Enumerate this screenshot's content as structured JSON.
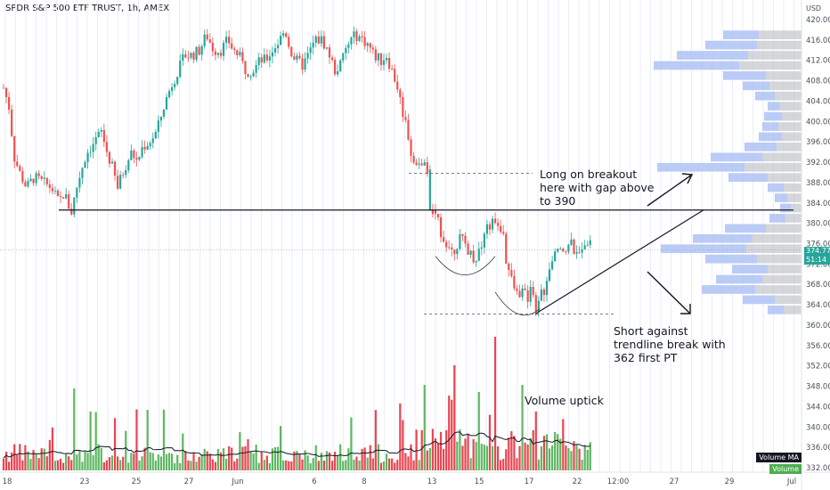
{
  "header": {
    "title": "SPDR S&P 500 ETF TRUST, 1h, AMEX"
  },
  "axis": {
    "currency": "USD"
  },
  "price_tag": {
    "value": "374.77",
    "countdown": "51:14"
  },
  "volume_tags": {
    "ma": "Volume MA",
    "vol": "Volume"
  },
  "annotations": {
    "long_line1": "Long on breakout",
    "long_line2": "here with gap above",
    "long_line3": "to 390",
    "short_line1": "Short against",
    "short_line2": "trendline break with",
    "short_line3": "362 first PT",
    "volume_note": "Volume uptick"
  },
  "colors": {
    "up": "#26a69a",
    "down": "#ef5350",
    "vol_up": "#4caf50",
    "vol_down": "#e5323e",
    "profile": "#b2c5f5",
    "profile_gray": "#c3c5cb"
  },
  "chart_data": {
    "type": "candlestick",
    "title": "SPDR S&P 500 ETF TRUST, 1h, AMEX",
    "y_ticks": [
      420,
      416,
      412,
      408,
      404,
      400,
      396,
      392,
      388,
      384,
      380,
      376,
      372,
      368,
      364,
      360,
      356,
      352,
      348,
      344,
      340,
      336,
      332
    ],
    "x_ticks": [
      "18",
      "23",
      "25",
      "27",
      "Jun",
      "6",
      "8",
      "13",
      "15",
      "17",
      "22",
      "12:00",
      "27",
      "29",
      "Jul"
    ],
    "ylim": [
      331,
      421
    ],
    "last_price": 374.77,
    "key_levels": {
      "breakout": 382.6,
      "gap_fill": 389.8,
      "support_pt": 362.2,
      "current": 374.8
    },
    "path": [
      [
        0,
        409
      ],
      [
        10,
        403
      ],
      [
        16,
        393
      ],
      [
        22,
        390
      ],
      [
        30,
        387
      ],
      [
        38,
        389
      ],
      [
        48,
        388
      ],
      [
        58,
        387
      ],
      [
        66,
        384
      ],
      [
        72,
        386
      ],
      [
        80,
        382
      ],
      [
        86,
        387
      ],
      [
        92,
        391
      ],
      [
        98,
        394
      ],
      [
        106,
        396
      ],
      [
        114,
        398
      ],
      [
        120,
        394
      ],
      [
        126,
        391
      ],
      [
        132,
        387
      ],
      [
        140,
        391
      ],
      [
        148,
        394
      ],
      [
        154,
        392
      ],
      [
        160,
        395
      ],
      [
        168,
        396
      ],
      [
        176,
        398
      ],
      [
        184,
        403
      ],
      [
        192,
        407
      ],
      [
        200,
        410
      ],
      [
        208,
        413
      ],
      [
        216,
        413
      ],
      [
        224,
        414
      ],
      [
        232,
        417
      ],
      [
        240,
        414
      ],
      [
        248,
        414
      ],
      [
        256,
        416
      ],
      [
        262,
        414
      ],
      [
        268,
        413
      ],
      [
        276,
        410
      ],
      [
        284,
        410
      ],
      [
        292,
        412
      ],
      [
        298,
        412
      ],
      [
        306,
        414
      ],
      [
        314,
        416
      ],
      [
        320,
        418
      ],
      [
        326,
        414
      ],
      [
        332,
        412
      ],
      [
        340,
        411
      ],
      [
        346,
        413
      ],
      [
        354,
        416
      ],
      [
        362,
        416
      ],
      [
        370,
        413
      ],
      [
        376,
        410
      ],
      [
        382,
        411
      ],
      [
        388,
        414
      ],
      [
        394,
        416
      ],
      [
        400,
        417
      ],
      [
        408,
        416
      ],
      [
        414,
        415
      ],
      [
        420,
        413
      ],
      [
        428,
        412
      ],
      [
        434,
        413
      ],
      [
        440,
        410
      ],
      [
        446,
        407
      ],
      [
        452,
        402
      ],
      [
        458,
        398
      ],
      [
        462,
        393
      ],
      [
        468,
        391
      ],
      [
        474,
        392
      ],
      [
        480,
        390
      ],
      [
        484,
        389.5
      ],
      [
        486,
        382
      ],
      [
        492,
        380
      ],
      [
        498,
        377
      ],
      [
        504,
        376
      ],
      [
        510,
        375
      ],
      [
        516,
        377
      ],
      [
        522,
        376
      ],
      [
        528,
        374
      ],
      [
        534,
        373
      ],
      [
        540,
        376
      ],
      [
        546,
        379
      ],
      [
        552,
        380
      ],
      [
        556,
        381
      ],
      [
        560,
        378
      ],
      [
        564,
        380
      ],
      [
        568,
        373
      ],
      [
        574,
        369
      ],
      [
        580,
        366
      ],
      [
        586,
        367
      ],
      [
        592,
        365
      ],
      [
        598,
        368
      ],
      [
        602,
        363
      ],
      [
        606,
        366
      ],
      [
        612,
        367
      ],
      [
        618,
        371
      ],
      [
        624,
        374
      ],
      [
        630,
        376
      ],
      [
        636,
        375
      ],
      [
        642,
        376
      ],
      [
        648,
        373
      ],
      [
        654,
        376
      ],
      [
        660,
        377
      ],
      [
        664,
        375
      ]
    ],
    "volume_profile": [
      {
        "price": 417,
        "blue": 40,
        "gray": 48
      },
      {
        "price": 415,
        "blue": 58,
        "gray": 50
      },
      {
        "price": 413,
        "blue": 80,
        "gray": 60
      },
      {
        "price": 411,
        "blue": 96,
        "gray": 70
      },
      {
        "price": 409,
        "blue": 48,
        "gray": 40
      },
      {
        "price": 407,
        "blue": 30,
        "gray": 36
      },
      {
        "price": 405,
        "blue": 22,
        "gray": 30
      },
      {
        "price": 403,
        "blue": 14,
        "gray": 24
      },
      {
        "price": 401,
        "blue": 20,
        "gray": 22
      },
      {
        "price": 399,
        "blue": 18,
        "gray": 26
      },
      {
        "price": 397,
        "blue": 26,
        "gray": 22
      },
      {
        "price": 395,
        "blue": 36,
        "gray": 28
      },
      {
        "price": 393,
        "blue": 58,
        "gray": 44
      },
      {
        "price": 391,
        "blue": 98,
        "gray": 64
      },
      {
        "price": 389,
        "blue": 44,
        "gray": 38
      },
      {
        "price": 387,
        "blue": 18,
        "gray": 20
      },
      {
        "price": 385,
        "blue": 14,
        "gray": 16
      },
      {
        "price": 383,
        "blue": 12,
        "gray": 12
      },
      {
        "price": 381,
        "blue": 18,
        "gray": 18
      },
      {
        "price": 379,
        "blue": 46,
        "gray": 40
      },
      {
        "price": 377,
        "blue": 66,
        "gray": 56
      },
      {
        "price": 375,
        "blue": 96,
        "gray": 62
      },
      {
        "price": 373,
        "blue": 58,
        "gray": 50
      },
      {
        "price": 371,
        "blue": 40,
        "gray": 38
      },
      {
        "price": 369,
        "blue": 52,
        "gray": 44
      },
      {
        "price": 367,
        "blue": 60,
        "gray": 52
      },
      {
        "price": 365,
        "blue": 36,
        "gray": 30
      },
      {
        "price": 363,
        "blue": 18,
        "gray": 20
      }
    ]
  }
}
